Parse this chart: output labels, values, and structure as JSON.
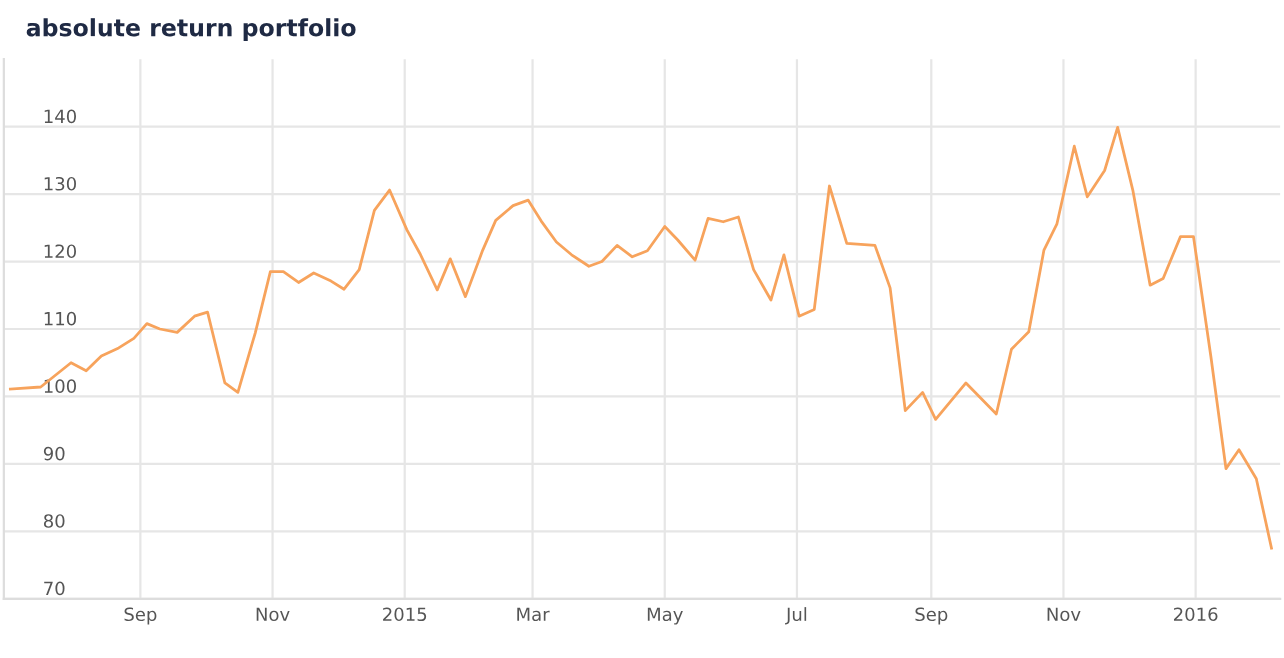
{
  "chart_data": {
    "type": "line",
    "title": "absolute return portfolio",
    "x": [
      "2014-07-03",
      "2014-07-17",
      "2014-07-31",
      "2014-08-07",
      "2014-08-14",
      "2014-08-22",
      "2014-08-29",
      "2014-09-04",
      "2014-09-10",
      "2014-09-18",
      "2014-09-26",
      "2014-10-02",
      "2014-10-10",
      "2014-10-16",
      "2014-10-24",
      "2014-10-31",
      "2014-11-06",
      "2014-11-13",
      "2014-11-20",
      "2014-11-28",
      "2014-12-04",
      "2014-12-11",
      "2014-12-18",
      "2014-12-25",
      "2015-01-02",
      "2015-01-08",
      "2015-01-16",
      "2015-01-22",
      "2015-01-29",
      "2015-02-06",
      "2015-02-12",
      "2015-02-20",
      "2015-02-27",
      "2015-03-05",
      "2015-03-12",
      "2015-03-19",
      "2015-03-27",
      "2015-04-02",
      "2015-04-09",
      "2015-04-16",
      "2015-04-23",
      "2015-05-01",
      "2015-05-07",
      "2015-05-15",
      "2015-05-21",
      "2015-05-28",
      "2015-06-04",
      "2015-06-11",
      "2015-06-19",
      "2015-06-25",
      "2015-07-02",
      "2015-07-09",
      "2015-07-16",
      "2015-07-24",
      "2015-08-06",
      "2015-08-13",
      "2015-08-20",
      "2015-08-28",
      "2015-09-03",
      "2015-09-17",
      "2015-10-01",
      "2015-10-08",
      "2015-10-16",
      "2015-10-23",
      "2015-10-29",
      "2015-11-06",
      "2015-11-12",
      "2015-11-20",
      "2015-11-26",
      "2015-12-03",
      "2015-12-11",
      "2015-12-17",
      "2015-12-25",
      "2015-12-31",
      "2016-01-08",
      "2016-01-15",
      "2016-01-21",
      "2016-01-29",
      "2016-02-05"
    ],
    "series": [
      {
        "color": "#f7a35c",
        "values": [
          101.1,
          101.4,
          105,
          103.8,
          106,
          107.2,
          108.6,
          110.8,
          110,
          109.5,
          111.9,
          112.5,
          102,
          100.6,
          109.4,
          118.5,
          118.5,
          116.9,
          118.3,
          117.1,
          115.9,
          118.8,
          127.6,
          130.6,
          124.7,
          121.2,
          115.8,
          120.4,
          114.8,
          121.7,
          126.1,
          128.3,
          129.1,
          126,
          122.9,
          121,
          119.3,
          120,
          122.4,
          120.7,
          121.6,
          125.2,
          123.2,
          120.2,
          126.4,
          125.9,
          126.6,
          118.8,
          114.3,
          121,
          111.9,
          112.9,
          131.2,
          122.7,
          122.4,
          116.1,
          97.9,
          100.6,
          96.6,
          102,
          97.4,
          107,
          109.6,
          121.7,
          125.6,
          137.1,
          129.6,
          133.5,
          139.9,
          130.6,
          116.5,
          117.5,
          123.7,
          123.7,
          106,
          89.3,
          92.1,
          87.8,
          77.5
        ]
      }
    ],
    "xlim": [
      "2014-06-30",
      "2016-02-09"
    ],
    "xticks": [
      {
        "value": "2014-09-01",
        "label": "Sep"
      },
      {
        "value": "2014-11-01",
        "label": "Nov"
      },
      {
        "value": "2015-01-01",
        "label": "2015"
      },
      {
        "value": "2015-03-01",
        "label": "Mar"
      },
      {
        "value": "2015-05-01",
        "label": "May"
      },
      {
        "value": "2015-07-01",
        "label": "Jul"
      },
      {
        "value": "2015-09-01",
        "label": "Sep"
      },
      {
        "value": "2015-11-01",
        "label": "Nov"
      },
      {
        "value": "2016-01-01",
        "label": "2016"
      }
    ],
    "ylim": [
      70,
      150
    ],
    "yticks": [
      70,
      80,
      90,
      100,
      110,
      120,
      130,
      140
    ],
    "grid": true,
    "marker": "none",
    "line_style": "solid"
  }
}
